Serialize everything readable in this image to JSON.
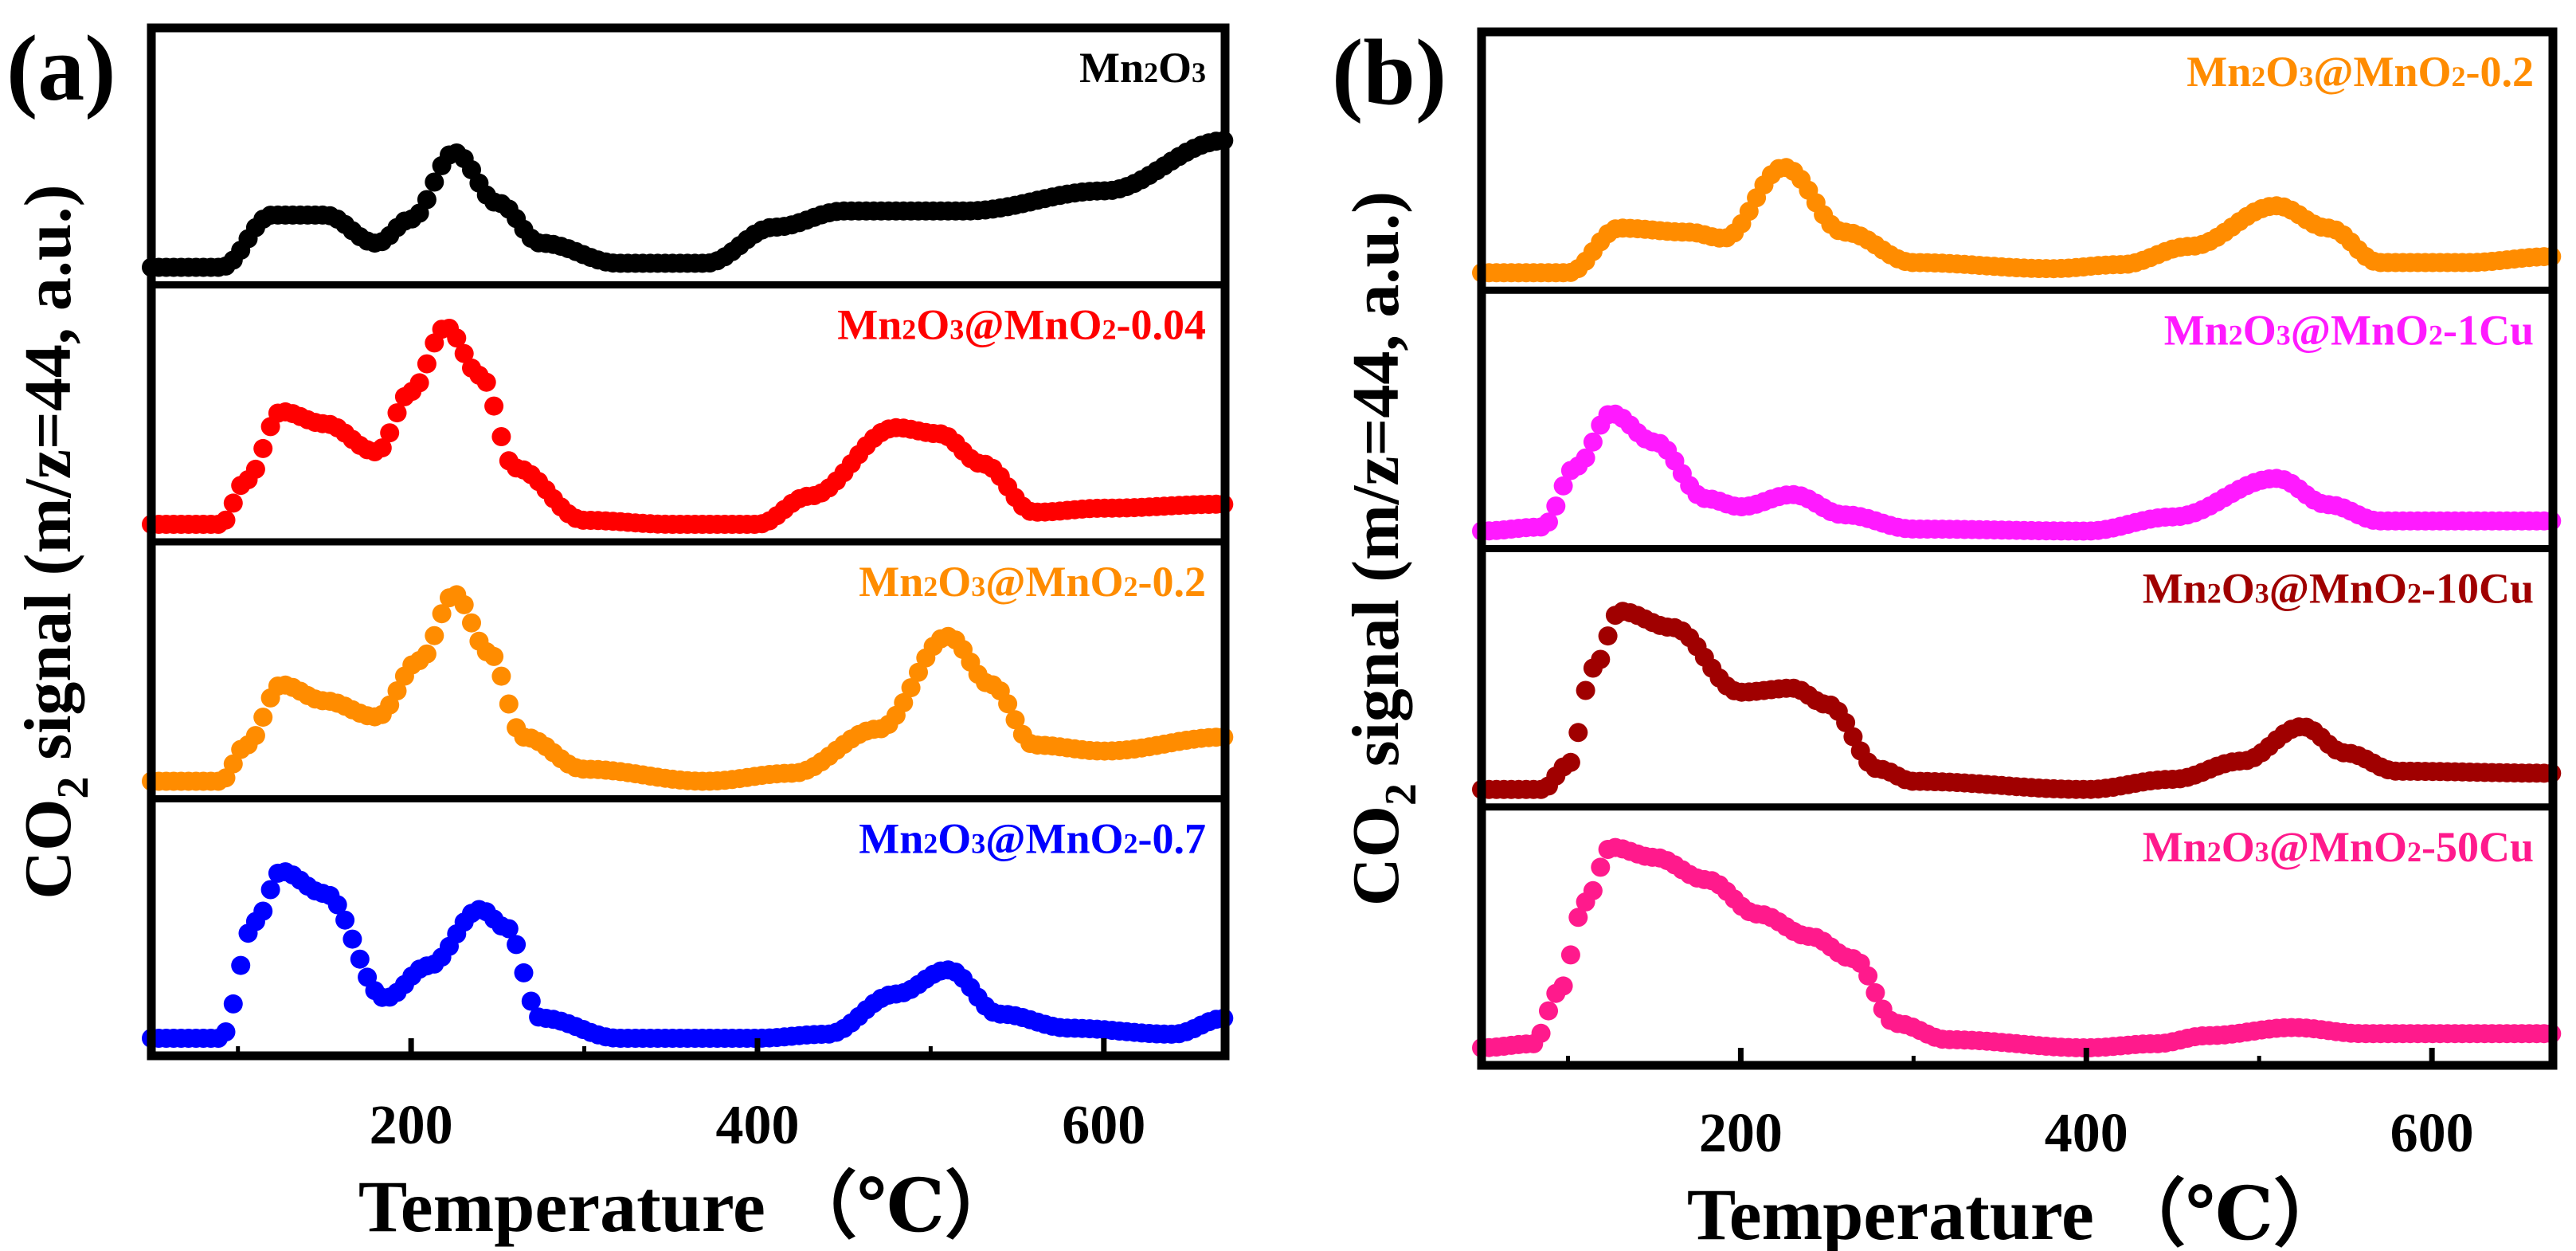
{
  "figure": {
    "panels": [
      {
        "id": "a",
        "panel_label": "(a)",
        "ylabel_main": "CO",
        "ylabel_sub": "2",
        "ylabel_rest": " signal (m/z=44, a.u.)",
        "xlabel": "Temperature （℃）",
        "x_ticks": [
          "200",
          "400",
          "600"
        ],
        "curves": [
          {
            "label_parts": [
              "Mn",
              "2",
              "O",
              "3"
            ],
            "color": "#000000"
          },
          {
            "label_parts": [
              "Mn",
              "2",
              "O",
              "3",
              "@MnO",
              "2",
              "-0.04"
            ],
            "color": "#ff0000"
          },
          {
            "label_parts": [
              "Mn",
              "2",
              "O",
              "3",
              "@MnO",
              "2",
              "-0.2"
            ],
            "color": "#ff8c00"
          },
          {
            "label_parts": [
              "Mn",
              "2",
              "O",
              "3",
              "@MnO",
              "2",
              "-0.7"
            ],
            "color": "#0000ff"
          }
        ]
      },
      {
        "id": "b",
        "panel_label": "(b)",
        "ylabel_main": "CO",
        "ylabel_sub": "2",
        "ylabel_rest": " signal (m/z=44, a.u.)",
        "xlabel": "Temperature （℃）",
        "x_ticks": [
          "200",
          "400",
          "600"
        ],
        "curves": [
          {
            "label_parts": [
              "Mn",
              "2",
              "O",
              "3",
              "@MnO",
              "2",
              "-0.2"
            ],
            "color": "#ff8c00"
          },
          {
            "label_parts": [
              "Mn",
              "2",
              "O",
              "3",
              "@MnO",
              "2",
              "-1Cu"
            ],
            "color": "#ff1aff"
          },
          {
            "label_parts": [
              "Mn",
              "2",
              "O",
              "3",
              "@MnO",
              "2",
              "-10Cu"
            ],
            "color": "#a00000"
          },
          {
            "label_parts": [
              "Mn",
              "2",
              "O",
              "3",
              "@MnO",
              "2",
              "-50Cu"
            ],
            "color": "#ff1a8c"
          }
        ]
      }
    ]
  },
  "chart_data": [
    {
      "type": "scatter",
      "title": "(a)",
      "xlabel": "Temperature （℃）",
      "ylabel": "CO2 signal (m/z=44, a.u.)",
      "xlim": [
        50,
        670
      ],
      "x_ticks": [
        200,
        400,
        600
      ],
      "ylim_per_series": [
        0,
        1
      ],
      "series": [
        {
          "name": "Mn2O3",
          "color": "#000000",
          "peaks": [
            [
              50,
              0.0
            ],
            [
              90,
              0.0
            ],
            [
              120,
              0.26
            ],
            [
              150,
              0.26
            ],
            [
              180,
              0.12
            ],
            [
              200,
              0.24
            ],
            [
              225,
              0.57
            ],
            [
              250,
              0.32
            ],
            [
              275,
              0.12
            ],
            [
              320,
              0.02
            ],
            [
              370,
              0.02
            ],
            [
              410,
              0.2
            ],
            [
              450,
              0.28
            ],
            [
              520,
              0.28
            ],
            [
              600,
              0.38
            ],
            [
              670,
              0.63
            ]
          ]
        },
        {
          "name": "Mn2O3@MnO2-0.04",
          "color": "#ff0000",
          "peaks": [
            [
              50,
              0.0
            ],
            [
              90,
              0.0
            ],
            [
              105,
              0.22
            ],
            [
              125,
              0.56
            ],
            [
              150,
              0.5
            ],
            [
              180,
              0.36
            ],
            [
              200,
              0.66
            ],
            [
              220,
              0.98
            ],
            [
              240,
              0.74
            ],
            [
              260,
              0.28
            ],
            [
              300,
              0.02
            ],
            [
              350,
              0.0
            ],
            [
              400,
              0.0
            ],
            [
              430,
              0.14
            ],
            [
              480,
              0.48
            ],
            [
              505,
              0.45
            ],
            [
              530,
              0.3
            ],
            [
              560,
              0.06
            ],
            [
              600,
              0.08
            ],
            [
              670,
              0.1
            ]
          ]
        },
        {
          "name": "Mn2O3@MnO2-0.2",
          "color": "#ff8c00",
          "peaks": [
            [
              50,
              0.0
            ],
            [
              90,
              0.0
            ],
            [
              105,
              0.18
            ],
            [
              125,
              0.48
            ],
            [
              150,
              0.4
            ],
            [
              180,
              0.32
            ],
            [
              205,
              0.6
            ],
            [
              225,
              0.93
            ],
            [
              245,
              0.64
            ],
            [
              265,
              0.22
            ],
            [
              300,
              0.06
            ],
            [
              370,
              0.0
            ],
            [
              420,
              0.04
            ],
            [
              470,
              0.26
            ],
            [
              510,
              0.72
            ],
            [
              535,
              0.48
            ],
            [
              560,
              0.18
            ],
            [
              600,
              0.15
            ],
            [
              670,
              0.22
            ]
          ]
        },
        {
          "name": "Mn2O3@MnO2-0.7",
          "color": "#0000ff",
          "peaks": [
            [
              50,
              0.0
            ],
            [
              90,
              0.0
            ],
            [
              110,
              0.58
            ],
            [
              125,
              0.83
            ],
            [
              150,
              0.72
            ],
            [
              185,
              0.2
            ],
            [
              210,
              0.36
            ],
            [
              240,
              0.64
            ],
            [
              255,
              0.55
            ],
            [
              275,
              0.1
            ],
            [
              320,
              0.0
            ],
            [
              400,
              0.0
            ],
            [
              440,
              0.02
            ],
            [
              480,
              0.22
            ],
            [
              510,
              0.34
            ],
            [
              540,
              0.12
            ],
            [
              580,
              0.05
            ],
            [
              640,
              0.02
            ],
            [
              670,
              0.1
            ]
          ]
        }
      ]
    },
    {
      "type": "scatter",
      "title": "(b)",
      "xlabel": "Temperature （℃）",
      "ylabel": "CO2 signal (m/z=44, a.u.)",
      "xlim": [
        50,
        670
      ],
      "x_ticks": [
        200,
        400,
        600
      ],
      "ylim_per_series": [
        0,
        1
      ],
      "series": [
        {
          "name": "Mn2O3@MnO2-0.2",
          "color": "#ff8c00",
          "peaks": [
            [
              50,
              0.0
            ],
            [
              100,
              0.0
            ],
            [
              130,
              0.22
            ],
            [
              170,
              0.2
            ],
            [
              190,
              0.17
            ],
            [
              225,
              0.52
            ],
            [
              260,
              0.2
            ],
            [
              300,
              0.05
            ],
            [
              380,
              0.02
            ],
            [
              420,
              0.04
            ],
            [
              460,
              0.13
            ],
            [
              510,
              0.33
            ],
            [
              540,
              0.22
            ],
            [
              570,
              0.05
            ],
            [
              620,
              0.05
            ],
            [
              670,
              0.08
            ]
          ]
        },
        {
          "name": "Mn2O3@MnO2-1Cu",
          "color": "#ff1aff",
          "peaks": [
            [
              50,
              0.0
            ],
            [
              85,
              0.02
            ],
            [
              105,
              0.32
            ],
            [
              125,
              0.58
            ],
            [
              150,
              0.44
            ],
            [
              180,
              0.16
            ],
            [
              200,
              0.12
            ],
            [
              230,
              0.18
            ],
            [
              260,
              0.08
            ],
            [
              300,
              0.01
            ],
            [
              400,
              0.0
            ],
            [
              450,
              0.07
            ],
            [
              510,
              0.26
            ],
            [
              540,
              0.13
            ],
            [
              570,
              0.05
            ],
            [
              670,
              0.05
            ]
          ]
        },
        {
          "name": "Mn2O3@MnO2-10Cu",
          "color": "#a00000",
          "peaks": [
            [
              50,
              0.0
            ],
            [
              85,
              0.0
            ],
            [
              100,
              0.12
            ],
            [
              115,
              0.6
            ],
            [
              130,
              0.88
            ],
            [
              160,
              0.8
            ],
            [
              200,
              0.48
            ],
            [
              230,
              0.5
            ],
            [
              250,
              0.42
            ],
            [
              280,
              0.1
            ],
            [
              300,
              0.04
            ],
            [
              400,
              0.0
            ],
            [
              450,
              0.05
            ],
            [
              490,
              0.14
            ],
            [
              525,
              0.31
            ],
            [
              550,
              0.18
            ],
            [
              580,
              0.09
            ],
            [
              670,
              0.08
            ]
          ]
        },
        {
          "name": "Mn2O3@MnO2-50Cu",
          "color": "#ff1a8c",
          "peaks": [
            [
              50,
              0.0
            ],
            [
              80,
              0.02
            ],
            [
              95,
              0.28
            ],
            [
              110,
              0.72
            ],
            [
              125,
              0.99
            ],
            [
              150,
              0.94
            ],
            [
              180,
              0.83
            ],
            [
              210,
              0.66
            ],
            [
              240,
              0.55
            ],
            [
              265,
              0.44
            ],
            [
              290,
              0.12
            ],
            [
              320,
              0.04
            ],
            [
              400,
              0.0
            ],
            [
              440,
              0.02
            ],
            [
              470,
              0.06
            ],
            [
              520,
              0.1
            ],
            [
              560,
              0.07
            ],
            [
              670,
              0.07
            ]
          ]
        }
      ]
    }
  ]
}
